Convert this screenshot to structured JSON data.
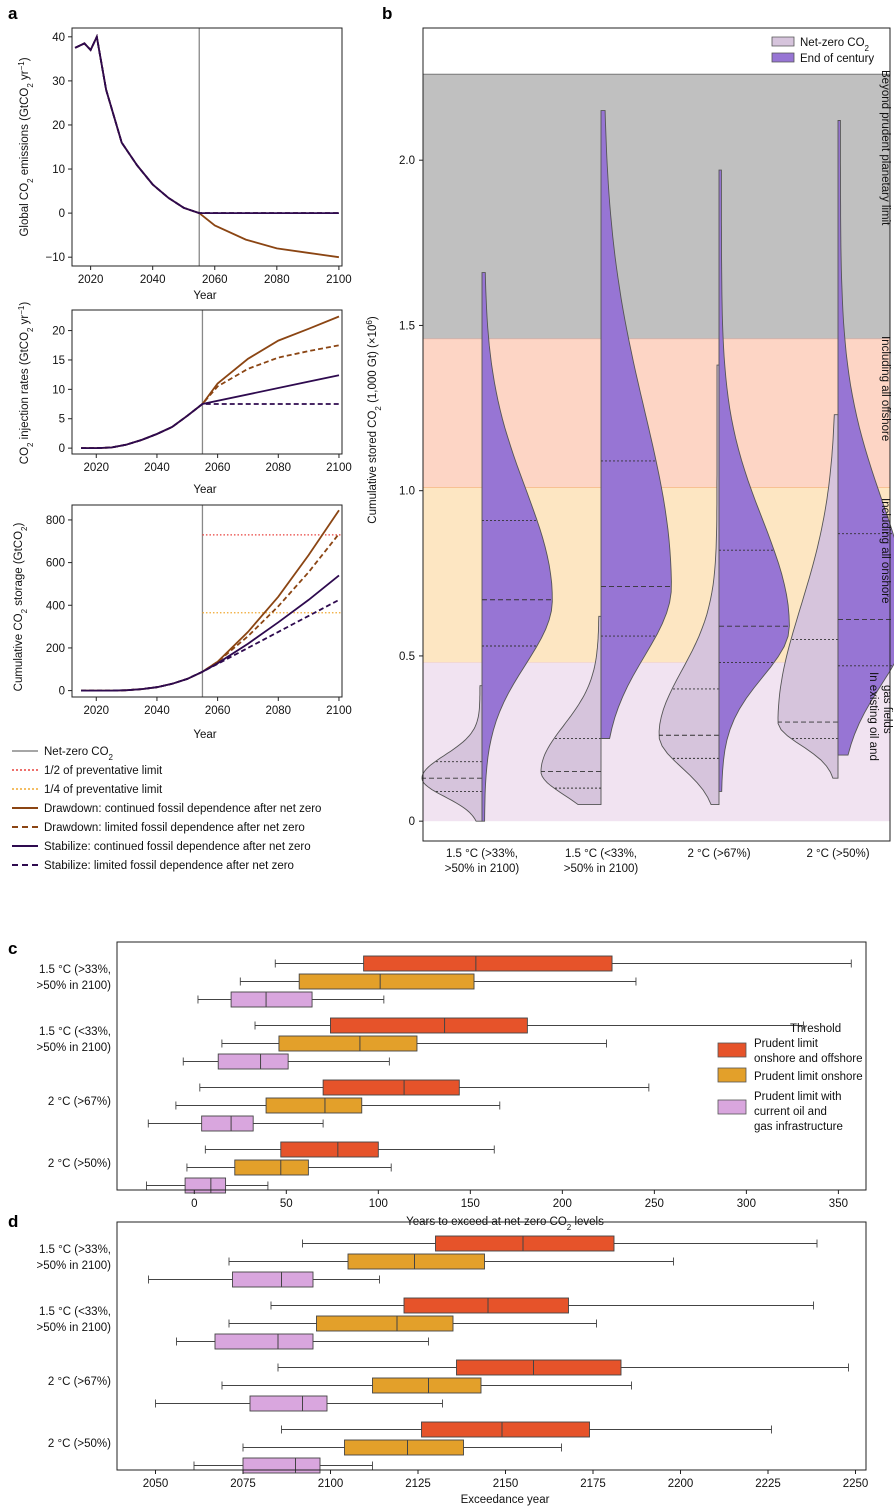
{
  "panel_letters": [
    "a",
    "b",
    "c",
    "d"
  ],
  "colors": {
    "drawdown": "#8b4513",
    "stabilize": "#2e0a4f",
    "netzero": "#888888",
    "half_limit": "#e8413c",
    "quarter_limit": "#f0a830",
    "band_beyond": "#c0c0c0",
    "band_offshore": "#fdd5c5",
    "band_onshore": "#fde6c2",
    "band_existing": "#f1e3f1",
    "violin_netzero": "#d6c4dc",
    "violin_end": "#9775d4",
    "box_prudent_all": "#e6532a",
    "box_prudent_onshore": "#e3a02a",
    "box_existing": "#d9a6de"
  },
  "legend_a": {
    "netzero": "Net-zero CO2",
    "half": "1/2 of preventative limit",
    "quarter": "1/4 of preventative limit",
    "dd_cont": "Drawdown: continued fossil dependence after net zero",
    "dd_lim": "Drawdown: limited fossil dependence after net zero",
    "st_cont": "Stabilize: continued fossil dependence after net zero",
    "st_lim": "Stabilize: limited fossil dependence after net zero"
  },
  "legend_b": {
    "netzero": "Net-zero CO2",
    "end": "End of century"
  },
  "legend_cd": {
    "title": "Threshold",
    "t1a": "Prudent limit",
    "t1b": "onshore and offshore",
    "t2": "Prudent limit onshore",
    "t3a": "Prudent limit with",
    "t3b": "current oil and",
    "t3c": "gas infrastructure"
  },
  "band_labels": {
    "beyond": "Beyond prudent planetary limit",
    "offshore": "Including all offshore",
    "onshore": "Including all onshore",
    "existing1": "In existing oil and",
    "existing2": "gas fields"
  },
  "chart_data": [
    {
      "id": "a1",
      "type": "line",
      "xlabel": "Year",
      "ylabel": "Global CO2 emissions (GtCO2 yr−1)",
      "xlim": [
        2014,
        2101
      ],
      "ylim": [
        -12,
        42
      ],
      "xticks": [
        2020,
        2040,
        2060,
        2080,
        2100
      ],
      "yticks": [
        -10,
        0,
        10,
        20,
        30,
        40
      ],
      "netzero_year": 2055,
      "series": [
        {
          "name": "Drawdown: continued fossil dependence after net zero",
          "style": "solid",
          "color_key": "drawdown",
          "x": [
            2015,
            2018,
            2020,
            2022,
            2025,
            2030,
            2035,
            2040,
            2045,
            2050,
            2055,
            2060,
            2070,
            2080,
            2090,
            2100
          ],
          "y": [
            37.5,
            38.5,
            37,
            40,
            28,
            16,
            10.8,
            6.5,
            3.5,
            1.2,
            0,
            -2.8,
            -6,
            -8,
            -9,
            -10
          ]
        },
        {
          "name": "Drawdown: limited fossil dependence after net zero",
          "style": "dashed",
          "color_key": "drawdown",
          "x": [
            2015,
            2018,
            2020,
            2022,
            2025,
            2030,
            2035,
            2040,
            2045,
            2050,
            2055,
            2100
          ],
          "y": [
            37.5,
            38.5,
            37,
            40,
            28,
            16,
            10.8,
            6.5,
            3.5,
            1.2,
            0,
            0
          ]
        },
        {
          "name": "Stabilize: continued fossil dependence after net zero",
          "style": "solid",
          "color_key": "stabilize",
          "x": [
            2015,
            2018,
            2020,
            2022,
            2025,
            2030,
            2035,
            2040,
            2045,
            2050,
            2055,
            2100
          ],
          "y": [
            37.5,
            38.5,
            37,
            40,
            28,
            16,
            10.8,
            6.5,
            3.5,
            1.2,
            0,
            0
          ]
        },
        {
          "name": "Stabilize: limited fossil dependence after net zero",
          "style": "dashed",
          "color_key": "stabilize",
          "x": [
            2015,
            2018,
            2020,
            2022,
            2025,
            2030,
            2035,
            2040,
            2045,
            2050,
            2055,
            2100
          ],
          "y": [
            37.5,
            38.5,
            37,
            40,
            28,
            16,
            10.8,
            6.5,
            3.5,
            1.2,
            0,
            0
          ]
        }
      ]
    },
    {
      "id": "a2",
      "type": "line",
      "xlabel": "Year",
      "ylabel": "CO2 injection rates (GtCO2 yr−1)",
      "xlim": [
        2012,
        2101
      ],
      "ylim": [
        -1,
        23.5
      ],
      "xticks": [
        2020,
        2040,
        2060,
        2080,
        2100
      ],
      "yticks": [
        0,
        5,
        10,
        15,
        20
      ],
      "netzero_year": 2055,
      "series": [
        {
          "name": "Drawdown: continued fossil dependence after net zero",
          "style": "solid",
          "color_key": "drawdown",
          "x": [
            2015,
            2020,
            2025,
            2030,
            2035,
            2040,
            2045,
            2050,
            2055,
            2060,
            2070,
            2080,
            2090,
            2100
          ],
          "y": [
            0,
            0,
            0.1,
            0.6,
            1.4,
            2.4,
            3.6,
            5.5,
            7.5,
            11,
            15.2,
            18.3,
            20.3,
            22.4
          ]
        },
        {
          "name": "Drawdown: limited fossil dependence after net zero",
          "style": "dashed",
          "color_key": "drawdown",
          "x": [
            2015,
            2020,
            2025,
            2030,
            2035,
            2040,
            2045,
            2050,
            2055,
            2060,
            2070,
            2080,
            2090,
            2100
          ],
          "y": [
            0,
            0,
            0.1,
            0.6,
            1.4,
            2.4,
            3.6,
            5.5,
            7.5,
            10.5,
            13.5,
            15.4,
            16.5,
            17.5
          ]
        },
        {
          "name": "Stabilize: continued fossil dependence after net zero",
          "style": "solid",
          "color_key": "stabilize",
          "x": [
            2015,
            2020,
            2025,
            2030,
            2035,
            2040,
            2045,
            2050,
            2055,
            2100
          ],
          "y": [
            0,
            0,
            0.1,
            0.6,
            1.4,
            2.4,
            3.6,
            5.5,
            7.5,
            12.4
          ]
        },
        {
          "name": "Stabilize: limited fossil dependence after net zero",
          "style": "dashed",
          "color_key": "stabilize",
          "x": [
            2015,
            2020,
            2025,
            2030,
            2035,
            2040,
            2045,
            2050,
            2055,
            2100
          ],
          "y": [
            0,
            0,
            0.1,
            0.6,
            1.4,
            2.4,
            3.6,
            5.5,
            7.5,
            7.5
          ]
        }
      ]
    },
    {
      "id": "a3",
      "type": "line",
      "xlabel": "Year",
      "ylabel": "Cumulative CO2 storage (GtCO2)",
      "xlim": [
        2012,
        2101
      ],
      "ylim": [
        -30,
        870
      ],
      "xticks": [
        2020,
        2040,
        2060,
        2080,
        2100
      ],
      "yticks": [
        0,
        200,
        400,
        600,
        800
      ],
      "netzero_year": 2055,
      "half_limit": 730,
      "quarter_limit": 365,
      "series": [
        {
          "name": "Drawdown: continued fossil dependence after net zero",
          "style": "solid",
          "color_key": "drawdown",
          "x": [
            2015,
            2020,
            2025,
            2030,
            2035,
            2040,
            2045,
            2050,
            2055,
            2060,
            2070,
            2080,
            2090,
            2100
          ],
          "y": [
            0,
            0,
            0,
            2,
            7,
            16,
            32,
            55,
            88,
            135,
            275,
            440,
            635,
            845
          ]
        },
        {
          "name": "Drawdown: limited fossil dependence after net zero",
          "style": "dashed",
          "color_key": "drawdown",
          "x": [
            2015,
            2020,
            2025,
            2030,
            2035,
            2040,
            2045,
            2050,
            2055,
            2060,
            2070,
            2080,
            2090,
            2100
          ],
          "y": [
            0,
            0,
            0,
            2,
            7,
            16,
            32,
            55,
            88,
            135,
            255,
            395,
            555,
            735
          ]
        },
        {
          "name": "Stabilize: continued fossil dependence after net zero",
          "style": "solid",
          "color_key": "stabilize",
          "x": [
            2015,
            2020,
            2025,
            2030,
            2035,
            2040,
            2045,
            2050,
            2055,
            2060,
            2070,
            2080,
            2090,
            2100
          ],
          "y": [
            0,
            0,
            0,
            2,
            7,
            16,
            32,
            55,
            88,
            128,
            220,
            320,
            425,
            540
          ]
        },
        {
          "name": "Stabilize: limited fossil dependence after net zero",
          "style": "dashed",
          "color_key": "stabilize",
          "x": [
            2015,
            2020,
            2025,
            2030,
            2035,
            2040,
            2045,
            2050,
            2055,
            2060,
            2070,
            2080,
            2090,
            2100
          ],
          "y": [
            0,
            0,
            0,
            2,
            7,
            16,
            32,
            55,
            88,
            125,
            200,
            275,
            350,
            425
          ]
        }
      ]
    },
    {
      "id": "b",
      "type": "violin",
      "ylabel": "Cumulative stored CO2 (1,000 Gt) (×10⁶)",
      "ylim": [
        -0.06,
        2.4
      ],
      "yticks": [
        "0",
        "0.5",
        "1.0",
        "1.5",
        "2.0"
      ],
      "ytick_values": [
        0,
        0.5,
        1.0,
        1.5,
        2.0
      ],
      "bands": [
        {
          "label_key": "existing",
          "from": 0,
          "to": 0.48
        },
        {
          "label_key": "onshore",
          "from": 0.48,
          "to": 1.01
        },
        {
          "label_key": "offshore",
          "from": 1.01,
          "to": 1.46
        },
        {
          "label_key": "beyond",
          "from": 1.46,
          "to": 2.26
        }
      ],
      "categories": [
        "1.5 °C (>33%,\n>50% in 2100)",
        "1.5 °C (<33%,\n>50% in 2100)",
        "2 °C (>67%)",
        "2 °C (>50%)"
      ],
      "series": [
        {
          "name": "Net-zero CO2",
          "min": [
            0.0,
            0.05,
            0.05,
            0.13
          ],
          "max": [
            0.41,
            0.62,
            1.38,
            1.23
          ],
          "q1": [
            0.09,
            0.1,
            0.19,
            0.25
          ],
          "median": [
            0.13,
            0.15,
            0.26,
            0.3
          ],
          "q3": [
            0.18,
            0.25,
            0.4,
            0.55
          ]
        },
        {
          "name": "End of century",
          "min": [
            0.0,
            0.25,
            0.09,
            0.2
          ],
          "max": [
            1.66,
            2.15,
            1.97,
            2.12
          ],
          "q1": [
            0.53,
            0.56,
            0.48,
            0.47
          ],
          "median": [
            0.67,
            0.71,
            0.59,
            0.61
          ],
          "q3": [
            0.91,
            1.09,
            0.82,
            0.87
          ]
        }
      ]
    },
    {
      "id": "c",
      "type": "box",
      "xlabel": "Years to exceed at net-zero CO2 levels",
      "xlim": [
        -42,
        365
      ],
      "xticks": [
        0,
        50,
        100,
        150,
        200,
        250,
        300,
        350
      ],
      "categories": [
        "1.5 °C (>33%,\n>50% in 2100)",
        "1.5 °C (<33%,\n>50% in 2100)",
        "2 °C (>67%)",
        "2 °C (>50%)"
      ],
      "series": [
        {
          "name": "Prudent limit onshore and offshore",
          "boxes": [
            [
              44,
              92,
              153,
              227,
              357
            ],
            [
              33,
              74,
              136,
              181,
              331
            ],
            [
              3,
              70,
              114,
              144,
              247
            ],
            [
              6,
              47,
              78,
              100,
              163
            ]
          ]
        },
        {
          "name": "Prudent limit onshore",
          "boxes": [
            [
              25,
              57,
              101,
              152,
              240
            ],
            [
              15,
              46,
              90,
              121,
              224
            ],
            [
              -10,
              39,
              71,
              91,
              166
            ],
            [
              -4,
              22,
              47,
              62,
              107
            ]
          ]
        },
        {
          "name": "Prudent limit with current oil and gas infrastructure",
          "boxes": [
            [
              2,
              20,
              39,
              64,
              103
            ],
            [
              -6,
              13,
              36,
              51,
              106
            ],
            [
              -25,
              4,
              20,
              32,
              70
            ],
            [
              -26,
              -5,
              9,
              17,
              40
            ]
          ]
        }
      ]
    },
    {
      "id": "d",
      "type": "box",
      "xlabel": "Exceedance year",
      "xlim": [
        2039,
        2253
      ],
      "xticks": [
        2050,
        2075,
        2100,
        2125,
        2150,
        2175,
        2200,
        2225,
        2250
      ],
      "categories": [
        "1.5 °C (>33%,\n>50% in 2100)",
        "1.5 °C (<33%,\n>50% in 2100)",
        "2 °C (>67%)",
        "2 °C (>50%)"
      ],
      "series": [
        {
          "name": "Prudent limit onshore and offshore",
          "boxes": [
            [
              2092,
              2130,
              2155,
              2181,
              2239
            ],
            [
              2083,
              2121,
              2145,
              2168,
              2238
            ],
            [
              2085,
              2136,
              2158,
              2183,
              2248
            ],
            [
              2086,
              2126,
              2149,
              2174,
              2226
            ]
          ]
        },
        {
          "name": "Prudent limit onshore",
          "boxes": [
            [
              2071,
              2105,
              2124,
              2144,
              2198
            ],
            [
              2071,
              2096,
              2119,
              2135,
              2176
            ],
            [
              2069,
              2112,
              2128,
              2143,
              2186
            ],
            [
              2075,
              2104,
              2122,
              2138,
              2166
            ]
          ]
        },
        {
          "name": "Prudent limit with current oil and gas infrastructure",
          "boxes": [
            [
              2048,
              2072,
              2086,
              2095,
              2114
            ],
            [
              2056,
              2067,
              2085,
              2095,
              2128
            ],
            [
              2050,
              2077,
              2092,
              2099,
              2132
            ],
            [
              2061,
              2075,
              2090,
              2097,
              2112
            ]
          ]
        }
      ]
    }
  ]
}
